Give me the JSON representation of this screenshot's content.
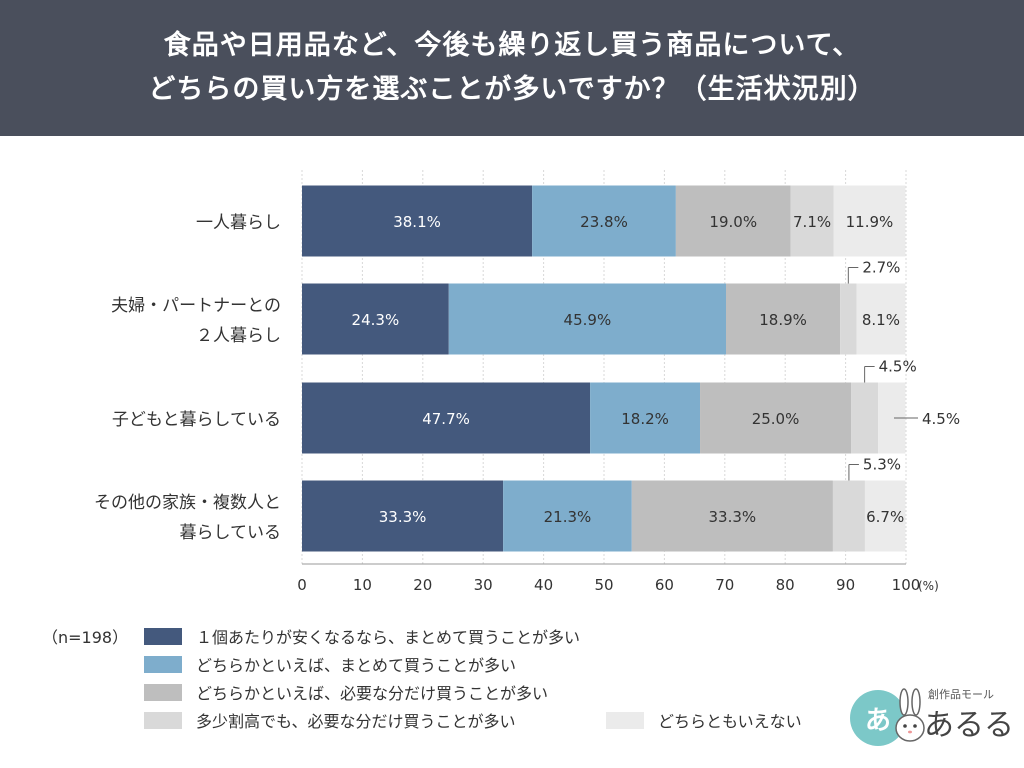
{
  "header": {
    "title_line1": "食品や日用品など、今後も繰り返し買う商品について、",
    "title_line2": "どちらの買い方を選ぶことが多いですか？（生活状況別）"
  },
  "chart_data": {
    "type": "bar",
    "orientation": "horizontal-stacked-100",
    "title": "食品や日用品など、今後も繰り返し買う商品について、どちらの買い方を選ぶことが多いですか？（生活状況別）",
    "categories": [
      [
        "一人暮らし"
      ],
      [
        "夫婦・パートナーとの",
        "２人暮らし"
      ],
      [
        "子どもと暮らしている"
      ],
      [
        "その他の家族・複数人と",
        "暮らしている"
      ]
    ],
    "series": [
      {
        "name": "１個あたりが安くなるなら、まとめて買うことが多い",
        "color": "#44597d",
        "values": [
          38.1,
          24.3,
          47.7,
          33.3
        ],
        "labels": [
          "38.1%",
          "24.3%",
          "47.7%",
          "33.3%"
        ]
      },
      {
        "name": "どちらかといえば、まとめて買うことが多い",
        "color": "#7eadcc",
        "values": [
          23.8,
          45.9,
          18.2,
          21.3
        ],
        "labels": [
          "23.8%",
          "45.9%",
          "18.2%",
          "21.3%"
        ]
      },
      {
        "name": "どちらかといえば、必要な分だけ買うことが多い",
        "color": "#bebebe",
        "values": [
          19.0,
          18.9,
          25.0,
          33.3
        ],
        "labels": [
          "19.0%",
          "18.9%",
          "25.0%",
          "33.3%"
        ]
      },
      {
        "name": "多少割高でも、必要な分だけ買うことが多い",
        "color": "#d9d9d9",
        "values": [
          7.1,
          2.7,
          4.5,
          5.3
        ],
        "labels": [
          "7.1%",
          "2.7%",
          "4.5%",
          "5.3%"
        ]
      },
      {
        "name": "どちらともいえない",
        "color": "#ebebeb",
        "values": [
          11.9,
          8.1,
          4.5,
          6.7
        ],
        "labels": [
          "11.9%",
          "8.1%",
          "4.5%",
          "6.7%"
        ]
      }
    ],
    "xlim": [
      0,
      100
    ],
    "xticks": [
      "0",
      "10",
      "20",
      "30",
      "40",
      "50",
      "60",
      "70",
      "80",
      "90",
      "100"
    ],
    "x_unit": "(%)",
    "grid": true,
    "legend_position": "bottom",
    "sample": "（n=198）"
  },
  "logo": {
    "small": "創作品モール",
    "big": "あるる",
    "badge": "あ"
  }
}
